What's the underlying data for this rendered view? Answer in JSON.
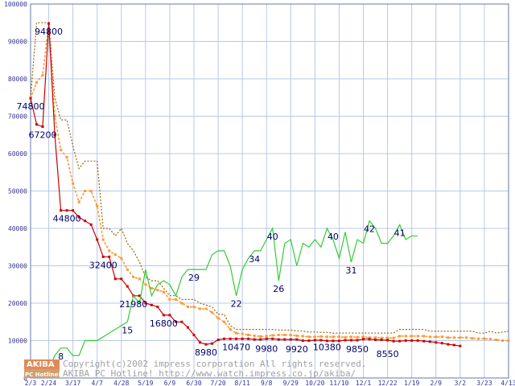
{
  "chart_data": {
    "type": "line",
    "grid": true,
    "x_tick_labels": [
      "2/3",
      "2/24",
      "3/17",
      "4/7",
      "4/28",
      "5/19",
      "6/9",
      "6/30",
      "7/20",
      "8/11",
      "9/8",
      "9/29",
      "10/20",
      "11/10",
      "12/1",
      "12/22",
      "1/19",
      "2/9",
      "3/2",
      "3/23",
      "4/13"
    ],
    "x_tick_index": [
      0,
      3,
      7,
      11,
      15,
      19,
      23,
      27,
      31,
      35,
      39,
      43,
      47,
      51,
      55,
      59,
      63,
      67,
      71,
      75,
      79
    ],
    "y_ticks": [
      0,
      10000,
      20000,
      30000,
      40000,
      50000,
      60000,
      70000,
      80000,
      90000,
      100000
    ],
    "ylim": [
      0,
      100000
    ],
    "y2lim": [
      0,
      100
    ],
    "point_count": 80,
    "series": [
      {
        "color": "#996600",
        "style": "dotted",
        "values": [
          74800,
          95000,
          95000,
          95000,
          75000,
          69000,
          69000,
          62000,
          56000,
          58000,
          58000,
          58000,
          40000,
          40000,
          38000,
          40000,
          36000,
          34000,
          31000,
          27000,
          26000,
          26000,
          24000,
          22000,
          22000,
          21000,
          21000,
          21000,
          20000,
          19500,
          19000,
          17000,
          17000,
          14000,
          13000,
          13000,
          13000,
          13000,
          13000,
          13000,
          13000,
          12800,
          12800,
          12800,
          12600,
          12500,
          12300,
          12300,
          12200,
          12200,
          12000,
          12000,
          12000,
          12000,
          12000,
          12000,
          12000,
          12000,
          12000,
          12000,
          12000,
          13000,
          13000,
          13000,
          13000,
          13000,
          12500,
          12500,
          12500,
          12500,
          12500,
          12500,
          12500,
          12500,
          12000,
          12000,
          12500,
          12000,
          12300,
          12500
        ]
      },
      {
        "color": "#ff9933",
        "style": "dashed",
        "values": [
          74800,
          79000,
          81000,
          94800,
          70000,
          61000,
          59000,
          52000,
          47000,
          50000,
          50000,
          46000,
          37000,
          34000,
          33000,
          32000,
          29000,
          27000,
          26500,
          25000,
          24000,
          23500,
          23000,
          21000,
          21000,
          20000,
          19000,
          19000,
          18500,
          18500,
          17500,
          16000,
          15000,
          13000,
          12000,
          11800,
          11500,
          11300,
          11100,
          11200,
          11400,
          11500,
          11500,
          11500,
          11300,
          11200,
          11000,
          11000,
          11100,
          11000,
          11000,
          11000,
          10900,
          11000,
          10900,
          11000,
          10800,
          10800,
          10700,
          10700,
          10700,
          11200,
          11200,
          11200,
          11200,
          11200,
          11000,
          11000,
          11000,
          10800,
          10800,
          10800,
          10800,
          10600,
          10500,
          10500,
          10400,
          10200,
          10000,
          10000
        ]
      },
      {
        "color": "#cc0000",
        "style": "solid",
        "values": [
          74800,
          67800,
          67200,
          94800,
          65000,
          44800,
          44800,
          44800,
          43000,
          42000,
          41000,
          37000,
          32400,
          32400,
          26500,
          26500,
          24500,
          21980,
          21980,
          20000,
          19500,
          19000,
          16800,
          16800,
          15000,
          15000,
          13500,
          11500,
          9500,
          8980,
          9200,
          10200,
          10470,
          10470,
          10470,
          10470,
          10470,
          10300,
          10300,
          10470,
          10470,
          10300,
          10300,
          10300,
          10300,
          9980,
          9980,
          10100,
          10100,
          9920,
          9920,
          9920,
          10100,
          10100,
          10100,
          10380,
          10380,
          10200,
          10200,
          10100,
          9850,
          9850,
          10000,
          10000,
          10000,
          9850,
          9700,
          9500,
          9300,
          9000,
          8800,
          8550
        ]
      },
      {
        "color": "#33cc33",
        "style": "solid",
        "axis": "right",
        "values": [
          null,
          0,
          2,
          2,
          6,
          8,
          8,
          6,
          6,
          10,
          10,
          10,
          11,
          12,
          13,
          14,
          15,
          22,
          20,
          29,
          22,
          25,
          26,
          25,
          22,
          27,
          29,
          29,
          29,
          29,
          33,
          34,
          34,
          30,
          22,
          29,
          32,
          34,
          34,
          37,
          40,
          26,
          36,
          37,
          30,
          36,
          35,
          37,
          35,
          40,
          37,
          32,
          39,
          31,
          37,
          36,
          42,
          40,
          36,
          36,
          38,
          41,
          37,
          38,
          38
        ]
      }
    ],
    "annotations": [
      {
        "text": "74800",
        "x": 0,
        "y": 74800
      },
      {
        "text": "94800",
        "x": 3,
        "y": 94800
      },
      {
        "text": "67200",
        "x": 2,
        "y": 67200
      },
      {
        "text": "44800",
        "x": 6,
        "y": 44800
      },
      {
        "text": "32400",
        "x": 12,
        "y": 32400
      },
      {
        "text": "21980",
        "x": 17,
        "y": 21980
      },
      {
        "text": "16800",
        "x": 22,
        "y": 16800
      },
      {
        "text": "8980",
        "x": 29,
        "y": 8980
      },
      {
        "text": "10470",
        "x": 34,
        "y": 10470
      },
      {
        "text": "9980",
        "x": 39,
        "y": 9980
      },
      {
        "text": "9920",
        "x": 44,
        "y": 9920
      },
      {
        "text": "10380",
        "x": 49,
        "y": 10380
      },
      {
        "text": "9850",
        "x": 54,
        "y": 9850
      },
      {
        "text": "8550",
        "x": 59,
        "y": 8550
      },
      {
        "text": "8",
        "x": 5,
        "y": 8,
        "axis": "right"
      },
      {
        "text": "15",
        "x": 16,
        "y": 15,
        "axis": "right"
      },
      {
        "text": "29",
        "x": 27,
        "y": 29,
        "axis": "right"
      },
      {
        "text": "22",
        "x": 34,
        "y": 22,
        "axis": "right"
      },
      {
        "text": "34",
        "x": 37,
        "y": 34,
        "axis": "right"
      },
      {
        "text": "40",
        "x": 40,
        "y": 40,
        "axis": "right"
      },
      {
        "text": "26",
        "x": 41,
        "y": 26,
        "axis": "right"
      },
      {
        "text": "40",
        "x": 50,
        "y": 40,
        "axis": "right"
      },
      {
        "text": "31",
        "x": 53,
        "y": 31,
        "axis": "right"
      },
      {
        "text": "42",
        "x": 56,
        "y": 42,
        "axis": "right"
      },
      {
        "text": "41",
        "x": 61,
        "y": 41,
        "axis": "right"
      }
    ]
  },
  "watermark": {
    "logo_top": "AKIBA",
    "logo_bottom": "PC Hotline!",
    "line1": "Copyright(c)2002 impress corporation All rights reserved.",
    "line2": "AKIBA PC Hotline!  http://www.watch.impress.co.jp/akiba/"
  }
}
